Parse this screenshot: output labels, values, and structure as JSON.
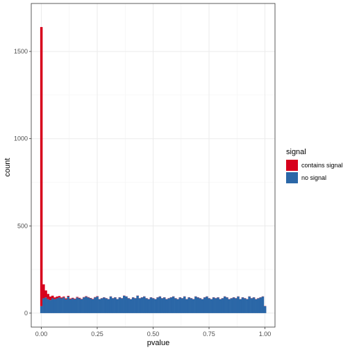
{
  "chart_data": {
    "type": "bar",
    "title": "",
    "xlabel": "pvalue",
    "ylabel": "count",
    "xlim": [
      -0.045,
      1.045
    ],
    "ylim": [
      -80,
      1775
    ],
    "x_ticks": [
      0,
      0.25,
      0.5,
      0.75,
      1
    ],
    "x_tick_labels": [
      "0.00",
      "0.25",
      "0.50",
      "0.75",
      "1.00"
    ],
    "y_ticks": [
      0,
      500,
      1000,
      1500
    ],
    "y_tick_labels": [
      "0",
      "500",
      "1000",
      "1500"
    ],
    "grid": true,
    "bin_width": 0.01,
    "stacked": true,
    "legend": {
      "title": "signal",
      "position": "right",
      "entries": [
        {
          "label": "contains signal",
          "color": "#D7001C"
        },
        {
          "label": "no signal",
          "color": "#2B67A7"
        }
      ]
    },
    "series": [
      {
        "name": "contains signal",
        "color": "#D7001C",
        "values": [
          1600,
          80,
          40,
          30,
          20,
          15,
          10,
          10,
          8,
          5,
          5,
          5,
          4,
          4,
          3,
          3,
          3,
          3,
          2,
          2,
          2,
          2,
          2,
          2,
          2,
          2,
          1,
          1,
          1,
          1,
          1,
          1,
          1,
          1,
          1,
          1,
          1,
          1,
          1,
          1,
          1,
          1,
          1,
          1,
          1,
          1,
          1,
          1,
          1,
          1,
          1,
          1,
          1,
          1,
          1,
          1,
          1,
          1,
          1,
          1,
          1,
          1,
          1,
          1,
          1,
          1,
          1,
          1,
          1,
          1,
          1,
          1,
          1,
          1,
          1,
          1,
          1,
          1,
          1,
          1,
          1,
          1,
          1,
          1,
          1,
          1,
          1,
          1,
          1,
          1,
          1,
          1,
          1,
          1,
          1,
          1,
          1,
          1,
          1,
          1,
          1
        ]
      },
      {
        "name": "no signal",
        "color": "#2B67A7",
        "values": [
          40,
          85,
          90,
          80,
          75,
          85,
          80,
          85,
          90,
          85,
          90,
          80,
          95,
          80,
          85,
          80,
          90,
          85,
          80,
          90,
          95,
          90,
          85,
          80,
          90,
          95,
          80,
          85,
          90,
          85,
          80,
          95,
          85,
          90,
          80,
          90,
          85,
          100,
          95,
          85,
          80,
          90,
          85,
          100,
          85,
          90,
          95,
          85,
          80,
          90,
          85,
          80,
          90,
          95,
          85,
          90,
          80,
          85,
          90,
          95,
          85,
          80,
          90,
          85,
          95,
          80,
          90,
          85,
          80,
          95,
          90,
          85,
          80,
          90,
          95,
          85,
          80,
          90,
          85,
          90,
          80,
          85,
          95,
          90,
          80,
          85,
          90,
          85,
          95,
          80,
          90,
          85,
          80,
          95,
          85,
          90,
          80,
          85,
          90,
          95,
          40
        ]
      }
    ]
  }
}
